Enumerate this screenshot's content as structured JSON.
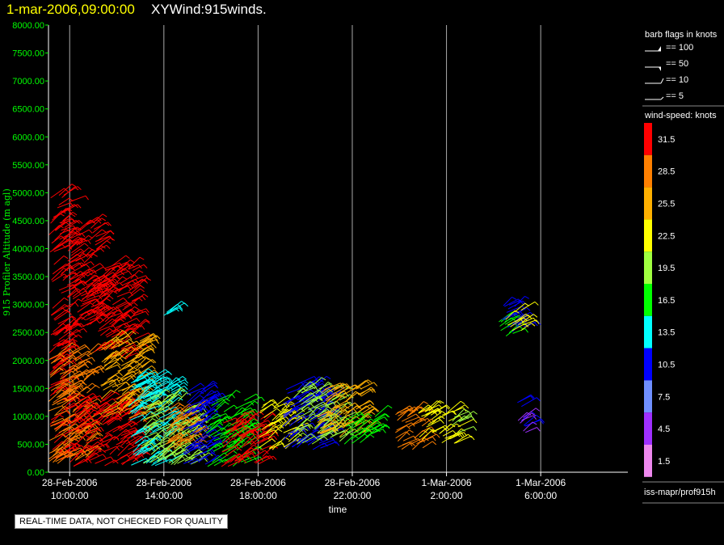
{
  "header": {
    "date": "1-mar-2006,09:00:00",
    "title": "XYWind:915winds."
  },
  "notice": "REAL-TIME DATA, NOT CHECKED FOR QUALITY",
  "legend": {
    "barb_title": "barb flags in knots",
    "barb_items": [
      "== 100",
      "== 50",
      "== 10",
      "== 5"
    ],
    "speed_title": "wind-speed: knots",
    "colors": [
      {
        "value": "31.5",
        "color": "#ff0000"
      },
      {
        "value": "28.5",
        "color": "#ff8000"
      },
      {
        "value": "25.5",
        "color": "#ffb000"
      },
      {
        "value": "22.5",
        "color": "#ffff00"
      },
      {
        "value": "19.5",
        "color": "#a0ff40"
      },
      {
        "value": "16.5",
        "color": "#00ff00"
      },
      {
        "value": "13.5",
        "color": "#00ffff"
      },
      {
        "value": "10.5",
        "color": "#0000ff"
      },
      {
        "value": "7.5",
        "color": "#6f8fff"
      },
      {
        "value": "4.5",
        "color": "#9f30ff"
      },
      {
        "value": "1.5",
        "color": "#ee88ee"
      }
    ],
    "source": "iss-mapr/prof915h"
  },
  "chart_data": {
    "type": "scatter",
    "xlabel": "time",
    "ylabel": "915 Profiler Altitude (m agl)",
    "ylim": [
      0,
      8000
    ],
    "yticks": [
      "0.00",
      "500.00",
      "1000.00",
      "1500.00",
      "2000.00",
      "2500.00",
      "3000.00",
      "3500.00",
      "4000.00",
      "4500.00",
      "5000.00",
      "5500.00",
      "6000.00",
      "6500.00",
      "7000.00",
      "7500.00",
      "8000.00"
    ],
    "xlim_hours": [
      7.5,
      13.5
    ],
    "xticks": [
      {
        "hour": 10,
        "date": "28-Feb-2006",
        "time": "10:00:00"
      },
      {
        "hour": 14,
        "date": "28-Feb-2006",
        "time": "14:00:00"
      },
      {
        "hour": 18,
        "date": "28-Feb-2006",
        "time": "18:00:00"
      },
      {
        "hour": 22,
        "date": "28-Feb-2006",
        "time": "22:00:00"
      },
      {
        "hour": 26,
        "date": "1-Mar-2006",
        "time": "2:00:00"
      },
      {
        "hour": 30,
        "date": "1-Mar-2006",
        "time": "6:00:00"
      }
    ],
    "xlim": [
      9.1,
      33.7
    ],
    "grid": "vertical lines at x ticks",
    "clusters": [
      {
        "t0": 9.1,
        "t1": 10.0,
        "h0": 200,
        "h1": 5000,
        "speed": 31.5
      },
      {
        "t0": 9.1,
        "t1": 10.8,
        "h0": 100,
        "h1": 2200,
        "speed": 28.5
      },
      {
        "t0": 9.9,
        "t1": 11.2,
        "h0": 2600,
        "h1": 4500,
        "speed": 31.5
      },
      {
        "t0": 11.0,
        "t1": 12.8,
        "h0": 2000,
        "h1": 3700,
        "speed": 31.5
      },
      {
        "t0": 10.0,
        "t1": 12.8,
        "h0": 100,
        "h1": 1300,
        "speed": 31.5
      },
      {
        "t0": 11.3,
        "t1": 13.2,
        "h0": 900,
        "h1": 2400,
        "speed": 25.5
      },
      {
        "t0": 12.5,
        "t1": 14.4,
        "h0": 100,
        "h1": 1700,
        "speed": 13.5
      },
      {
        "t0": 13.0,
        "t1": 15.3,
        "h0": 100,
        "h1": 1300,
        "speed": 19.5
      },
      {
        "t0": 14.0,
        "t1": 15.4,
        "h0": 400,
        "h1": 1200,
        "speed": 28.5
      },
      {
        "t0": 14.8,
        "t1": 16.0,
        "h0": 100,
        "h1": 1500,
        "speed": 10.5
      },
      {
        "t0": 15.8,
        "t1": 17.5,
        "h0": 100,
        "h1": 1300,
        "speed": 16.5
      },
      {
        "t0": 16.4,
        "t1": 18.3,
        "h0": 100,
        "h1": 1000,
        "speed": 31.5
      },
      {
        "t0": 18.0,
        "t1": 19.5,
        "h0": 400,
        "h1": 1200,
        "speed": 22.5
      },
      {
        "t0": 19.0,
        "t1": 21.0,
        "h0": 400,
        "h1": 1600,
        "speed": 10.5
      },
      {
        "t0": 19.5,
        "t1": 21.5,
        "h0": 500,
        "h1": 1500,
        "speed": 19.5
      },
      {
        "t0": 20.5,
        "t1": 22.5,
        "h0": 600,
        "h1": 1500,
        "speed": 25.5
      },
      {
        "t0": 21.5,
        "t1": 23.0,
        "h0": 500,
        "h1": 1000,
        "speed": 16.5
      },
      {
        "t0": 23.8,
        "t1": 25.0,
        "h0": 400,
        "h1": 1100,
        "speed": 28.5
      },
      {
        "t0": 24.8,
        "t1": 26.5,
        "h0": 500,
        "h1": 1100,
        "speed": 22.5
      },
      {
        "t0": 26.0,
        "t1": 26.6,
        "h0": 700,
        "h1": 1000,
        "speed": 19.5
      },
      {
        "t0": 28.2,
        "t1": 29.0,
        "h0": 2400,
        "h1": 2700,
        "speed": 16.5
      },
      {
        "t0": 28.3,
        "t1": 29.3,
        "h0": 2500,
        "h1": 3000,
        "speed": 10.5
      },
      {
        "t0": 28.5,
        "t1": 29.3,
        "h0": 2500,
        "h1": 2900,
        "speed": 22.5
      },
      {
        "t0": 29.0,
        "t1": 29.4,
        "h0": 800,
        "h1": 1300,
        "speed": 10.5
      },
      {
        "t0": 29.0,
        "t1": 29.4,
        "h0": 600,
        "h1": 1000,
        "speed": 4.5
      },
      {
        "t0": 13.9,
        "t1": 14.3,
        "h0": 2700,
        "h1": 2900,
        "speed": 13.5
      }
    ]
  }
}
